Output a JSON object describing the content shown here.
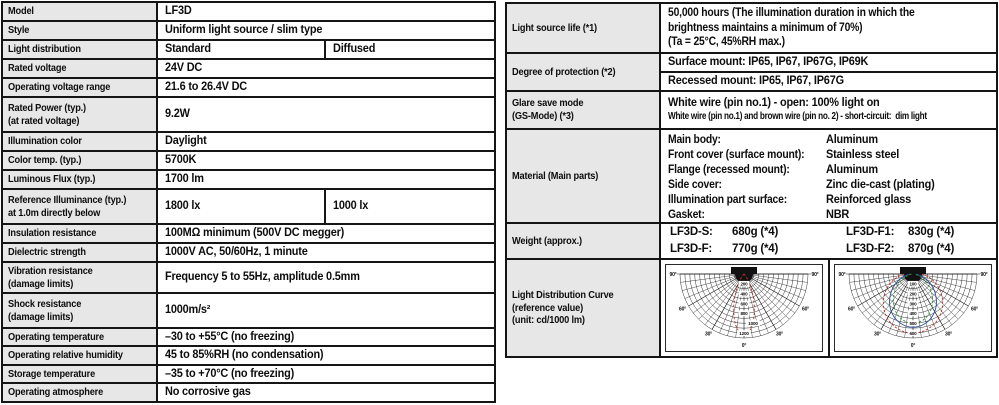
{
  "left_table": {
    "rows": [
      {
        "label": "Model",
        "value": "LF3D"
      },
      {
        "label": "Style",
        "value": "Uniform light source / slim type"
      },
      {
        "label": "Light distribution",
        "value_left": "Standard",
        "value_right": "Diffused"
      },
      {
        "label": "Rated voltage",
        "value": "24V DC"
      },
      {
        "label": "Operating voltage range",
        "value": "21.6 to 26.4V DC"
      },
      {
        "label": "Rated Power (typ.)\n(at rated voltage)",
        "value": "9.2W"
      },
      {
        "label": "Illumination color",
        "value": "Daylight"
      },
      {
        "label": "Color temp. (typ.)",
        "value": "5700K"
      },
      {
        "label": "Luminous Flux (typ.)",
        "value": "1700 lm"
      },
      {
        "label": "Reference Illuminance (typ.)\nat 1.0m directly below",
        "value_left": "1800 lx",
        "value_right": "1000 lx"
      },
      {
        "label": "Insulation resistance",
        "value": "100MΩ minimum (500V DC megger)"
      },
      {
        "label": "Dielectric strength",
        "value": "1000V AC, 50/60Hz, 1 minute"
      },
      {
        "label": "Vibration resistance\n(damage limits)",
        "value": "Frequency 5 to 55Hz, amplitude 0.5mm"
      },
      {
        "label": "Shock resistance\n(damage limits)",
        "value": "1000m/s²"
      },
      {
        "label": "Operating temperature",
        "value": "–30 to +55°C (no freezing)"
      },
      {
        "label": "Operating relative humidity",
        "value": "45 to 85%RH (no condensation)"
      },
      {
        "label": "Storage temperature",
        "value": "–35 to +70°C (no freezing)"
      },
      {
        "label": "Operating atmosphere",
        "value": "No corrosive gas"
      }
    ]
  },
  "right_table": {
    "light_source_life": {
      "label": "Light source life (*1)",
      "text": "50,000 hours (The illumination duration in which the brightness maintains a minimum of 70%)",
      "condition": "(Ta = 25°C, 45%RH max.)"
    },
    "degree_of_protection": {
      "label": "Degree of protection (*2)",
      "surface": "Surface mount: IP65, IP67, IP67G, IP69K",
      "recessed": "Recessed mount: IP65, IP67, IP67G"
    },
    "glare_save_mode": {
      "label": "Glare save mode\n(GS-Mode) (*3)",
      "line1": "White wire (pin no.1) - open: 100% light on",
      "line2": "White wire (pin no.1) and brown wire (pin no. 2) - short-circuit:  dim light"
    },
    "material": {
      "label": "Material (Main parts)",
      "parts": [
        {
          "part": "Main body:",
          "material": "Aluminum"
        },
        {
          "part": "Front cover (surface mount):",
          "material": "Stainless steel"
        },
        {
          "part": "Flange (recessed mount):",
          "material": "Aluminum"
        },
        {
          "part": "Side cover:",
          "material": "Zinc die-cast (plating)"
        },
        {
          "part": "Illumination part surface:",
          "material": "Reinforced glass"
        },
        {
          "part": "Gasket:",
          "material": "NBR"
        }
      ]
    },
    "weight": {
      "label": "Weight (approx.)",
      "items": [
        {
          "model": "LF3D-S:",
          "value": "680g (*4)"
        },
        {
          "model": "LF3D-F1:",
          "value": "830g (*4)"
        },
        {
          "model": "LF3D-F:",
          "value": "770g (*4)"
        },
        {
          "model": "LF3D-F2:",
          "value": "870g (*4)"
        }
      ]
    },
    "light_distribution": {
      "label": "Light Distribution Curve\n(reference value)\n(unit: cd/1000 lm)"
    }
  },
  "chart_data": [
    {
      "type": "polar",
      "name": "standard-light-distribution-curve",
      "unit": "cd/1000 lm",
      "angle_labels": [
        "90°",
        "60°",
        "30°",
        "0°"
      ],
      "radial_ticks": [
        200,
        400,
        600,
        800,
        1000,
        1200
      ],
      "tick_dx": [
        0,
        0,
        0,
        0,
        9,
        0
      ],
      "r_max": 1300,
      "grid_step": 100,
      "series": [
        {
          "name": "standard",
          "color": "#bb2e26",
          "dash": true,
          "peak": 1230,
          "exponent": 12,
          "floor": 0
        }
      ]
    },
    {
      "type": "polar",
      "name": "diffused-light-distribution-curve",
      "unit": "cd/1000 lm",
      "angle_labels": [
        "90°",
        "60°",
        "30°",
        "0°"
      ],
      "radial_ticks": [
        100,
        200,
        300,
        400,
        500,
        600
      ],
      "tick_dx": [
        0,
        0,
        0,
        0,
        0,
        0
      ],
      "r_max": 650,
      "grid_step": 50,
      "series": [
        {
          "name": "diffused-wide",
          "color": "#bb2e26",
          "dash": true,
          "peak": 600,
          "exponent": 1.2,
          "floor": 0.15
        },
        {
          "name": "diffused-mid",
          "color": "#2b4f9e",
          "dash": false,
          "peak": 540,
          "exponent": 1.5,
          "floor": 0.05
        },
        {
          "name": "diffused-inner",
          "color": "#2f8f3a",
          "dash": true,
          "peak": 500,
          "exponent": 1.9,
          "floor": 0.03
        }
      ]
    }
  ]
}
